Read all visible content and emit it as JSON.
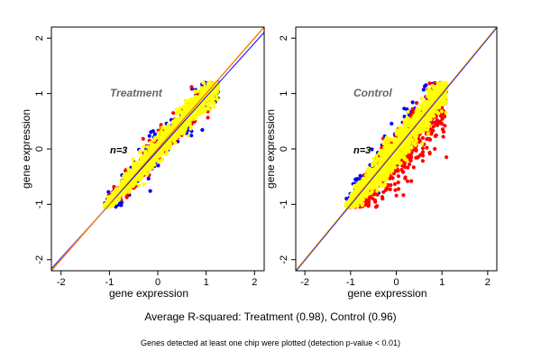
{
  "chart_data": [
    {
      "type": "scatter",
      "panel_label": "Treatment",
      "n_label": "n=3",
      "xlabel": "gene expression",
      "ylabel": "gene expression",
      "xlim": [
        -2.2,
        2.2
      ],
      "ylim": [
        -2.2,
        2.2
      ],
      "x_ticks": [
        -2,
        -1,
        0,
        1,
        2
      ],
      "y_ticks": [
        -2,
        -1,
        0,
        1,
        2
      ],
      "grid": false,
      "cloud": {
        "x_range": [
          -1.1,
          1.25
        ],
        "y_range": [
          -1.05,
          1.2
        ],
        "slope": 0.97,
        "spread": {
          "blue": 0.18,
          "red": 0.16,
          "yellow": 0.12
        },
        "counts": {
          "blue": 260,
          "red": 240,
          "yellow": 1300
        }
      },
      "point_colors": {
        "blue": "#0000ff",
        "red": "#ff0000",
        "yellow": "#ffff00"
      },
      "lines": [
        {
          "color": "#ff0000",
          "slope": 1.0,
          "intercept": 0.0
        },
        {
          "color": "#0000ff",
          "slope": 0.97,
          "intercept": -0.03
        },
        {
          "color": "#ffaa00",
          "slope": 1.0,
          "intercept": 0.01
        }
      ]
    },
    {
      "type": "scatter",
      "panel_label": "Control",
      "n_label": "n=3",
      "xlabel": "gene expression",
      "ylabel": "gene expression",
      "xlim": [
        -2.2,
        2.2
      ],
      "ylim": [
        -2.2,
        2.2
      ],
      "x_ticks": [
        -2,
        -1,
        0,
        1,
        2
      ],
      "y_ticks": [
        -2,
        -1,
        0,
        1,
        2
      ],
      "grid": false,
      "cloud": {
        "x_range": [
          -1.1,
          1.1
        ],
        "y_range": [
          -1.05,
          1.2
        ],
        "slope": 1.0,
        "spread": {
          "blue": 0.32,
          "red": 0.34,
          "yellow": 0.16
        },
        "counts": {
          "blue": 200,
          "red": 700,
          "yellow": 1300
        }
      },
      "point_colors": {
        "blue": "#0000ff",
        "red": "#ff0000",
        "yellow": "#ffff00"
      },
      "lines": [
        {
          "color": "#ff0000",
          "slope": 1.0,
          "intercept": 0.0
        },
        {
          "color": "#0000ff",
          "slope": 1.0,
          "intercept": -0.01
        },
        {
          "color": "#ffaa00",
          "slope": 1.0,
          "intercept": 0.01
        }
      ]
    }
  ],
  "footer": {
    "summary": "Average R-squared: Treatment (0.98), Control (0.96)",
    "note": "Genes detected at least one chip were plotted (detection p-value < 0.01)"
  }
}
